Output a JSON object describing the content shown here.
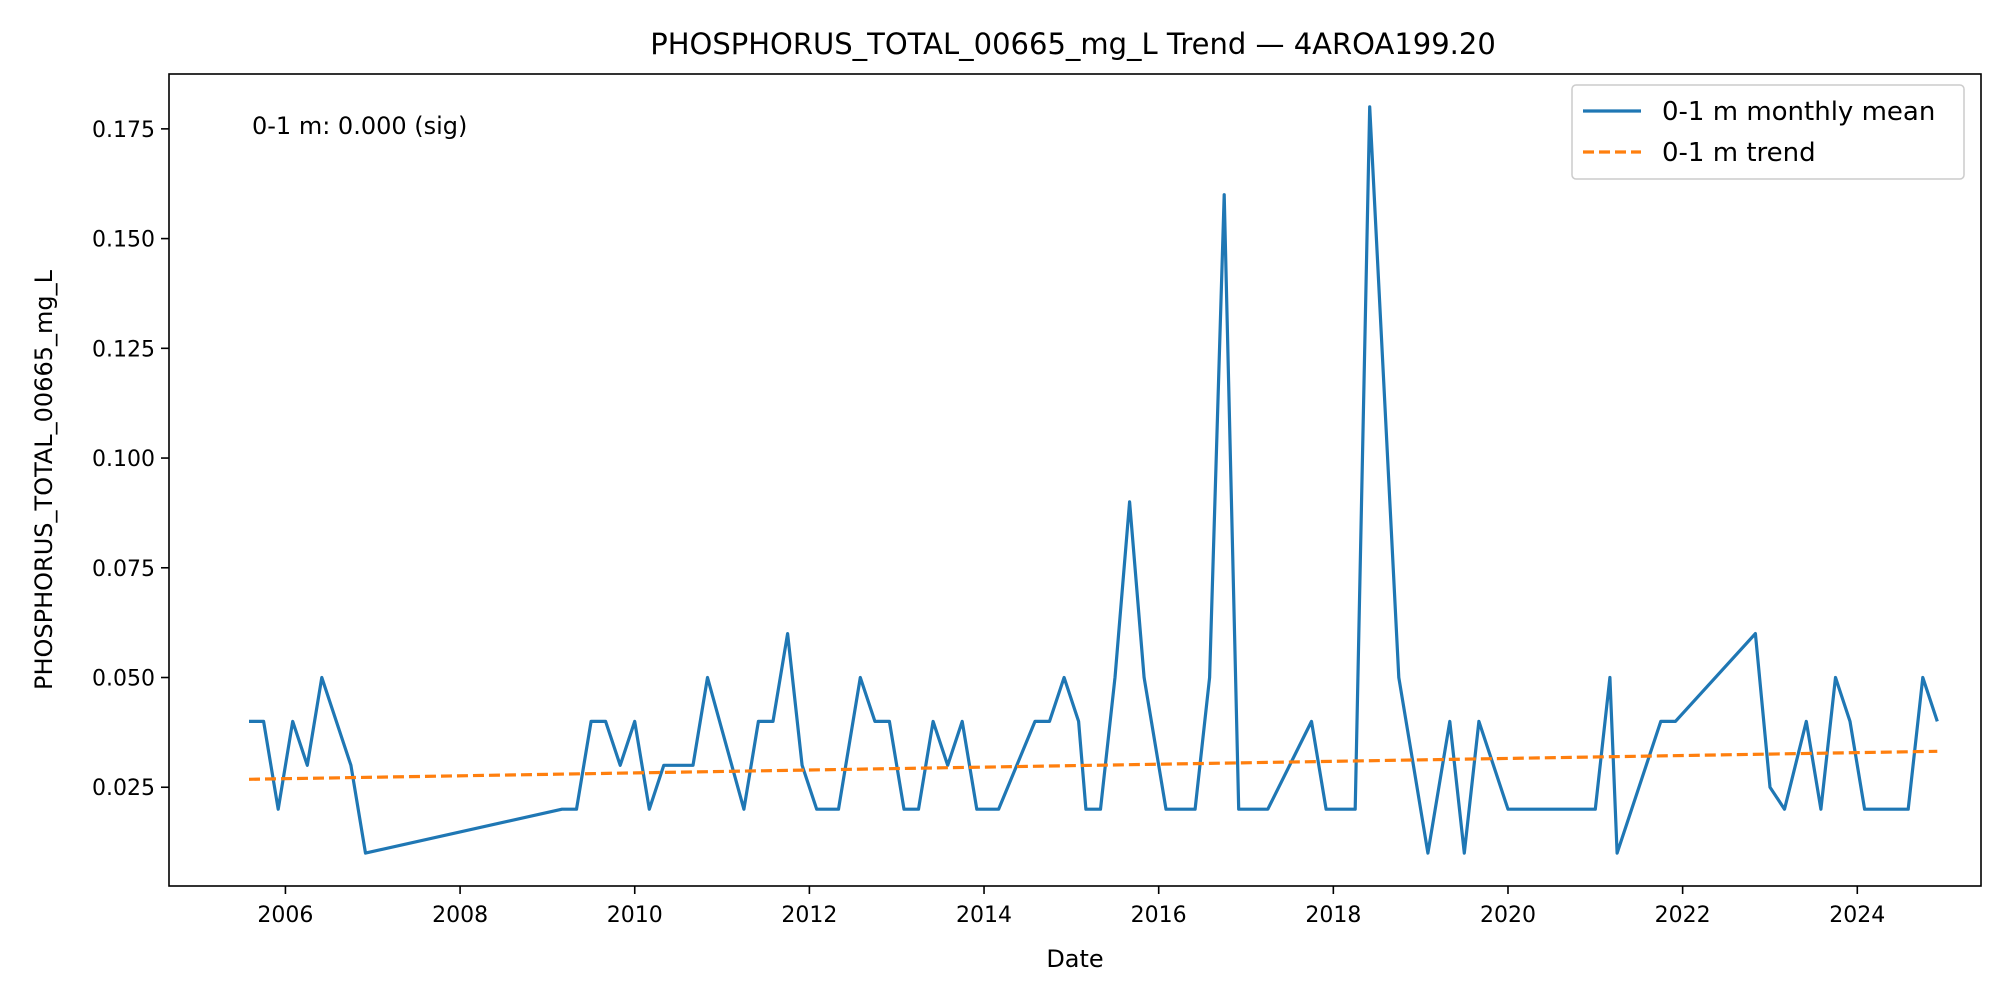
{
  "chart_data": {
    "type": "line",
    "title": "PHOSPHORUS_TOTAL_00665_mg_L Trend — 4AROA199.20",
    "xlabel": "Date",
    "ylabel": "PHOSPHORUS_TOTAL_00665_mg_L",
    "x_axis": "date",
    "xlim": [
      "2004-09-01",
      "2025-06-01"
    ],
    "ylim": [
      0.0025,
      0.1875
    ],
    "xticks": [
      "2006",
      "2008",
      "2010",
      "2012",
      "2014",
      "2016",
      "2018",
      "2020",
      "2022",
      "2024"
    ],
    "yticks": [
      "0.025",
      "0.050",
      "0.075",
      "0.100",
      "0.125",
      "0.150",
      "0.175"
    ],
    "grid": false,
    "legend_position": "top-right",
    "annotation": "0-1 m: 0.000 (sig)",
    "series": [
      {
        "name": "0-1 m monthly mean",
        "color": "#1f77b4",
        "style": "solid",
        "points": [
          [
            "2005-08",
            0.04
          ],
          [
            "2005-10",
            0.04
          ],
          [
            "2005-12",
            0.02
          ],
          [
            "2006-02",
            0.04
          ],
          [
            "2006-04",
            0.03
          ],
          [
            "2006-06",
            0.05
          ],
          [
            "2006-10",
            0.03
          ],
          [
            "2006-12",
            0.01
          ],
          [
            "2009-03",
            0.02
          ],
          [
            "2009-05",
            0.02
          ],
          [
            "2009-07",
            0.04
          ],
          [
            "2009-09",
            0.04
          ],
          [
            "2009-11",
            0.03
          ],
          [
            "2010-01",
            0.04
          ],
          [
            "2010-03",
            0.02
          ],
          [
            "2010-05",
            0.03
          ],
          [
            "2010-09",
            0.03
          ],
          [
            "2010-11",
            0.05
          ],
          [
            "2011-04",
            0.02
          ],
          [
            "2011-06",
            0.04
          ],
          [
            "2011-08",
            0.04
          ],
          [
            "2011-10",
            0.06
          ],
          [
            "2011-12",
            0.03
          ],
          [
            "2012-02",
            0.02
          ],
          [
            "2012-05",
            0.02
          ],
          [
            "2012-08",
            0.05
          ],
          [
            "2012-10",
            0.04
          ],
          [
            "2012-12",
            0.04
          ],
          [
            "2013-02",
            0.02
          ],
          [
            "2013-04",
            0.02
          ],
          [
            "2013-06",
            0.04
          ],
          [
            "2013-08",
            0.03
          ],
          [
            "2013-10",
            0.04
          ],
          [
            "2013-12",
            0.02
          ],
          [
            "2014-03",
            0.02
          ],
          [
            "2014-08",
            0.04
          ],
          [
            "2014-10",
            0.04
          ],
          [
            "2014-12",
            0.05
          ],
          [
            "2015-02",
            0.04
          ],
          [
            "2015-03",
            0.02
          ],
          [
            "2015-05",
            0.02
          ],
          [
            "2015-07",
            0.05
          ],
          [
            "2015-09",
            0.09
          ],
          [
            "2015-11",
            0.05
          ],
          [
            "2016-02",
            0.02
          ],
          [
            "2016-06",
            0.02
          ],
          [
            "2016-08",
            0.05
          ],
          [
            "2016-10",
            0.16
          ],
          [
            "2016-12",
            0.02
          ],
          [
            "2017-04",
            0.02
          ],
          [
            "2017-10",
            0.04
          ],
          [
            "2017-12",
            0.02
          ],
          [
            "2018-04",
            0.02
          ],
          [
            "2018-06",
            0.18
          ],
          [
            "2018-10",
            0.05
          ],
          [
            "2018-12",
            0.03
          ],
          [
            "2019-02",
            0.01
          ],
          [
            "2019-05",
            0.04
          ],
          [
            "2019-07",
            0.01
          ],
          [
            "2019-09",
            0.04
          ],
          [
            "2020-01",
            0.02
          ],
          [
            "2021-01",
            0.02
          ],
          [
            "2021-03",
            0.05
          ],
          [
            "2021-04",
            0.01
          ],
          [
            "2021-10",
            0.04
          ],
          [
            "2021-12",
            0.04
          ],
          [
            "2022-11",
            0.06
          ],
          [
            "2023-01",
            0.025
          ],
          [
            "2023-03",
            0.02
          ],
          [
            "2023-06",
            0.04
          ],
          [
            "2023-08",
            0.02
          ],
          [
            "2023-10",
            0.05
          ],
          [
            "2023-12",
            0.04
          ],
          [
            "2024-02",
            0.02
          ],
          [
            "2024-08",
            0.02
          ],
          [
            "2024-10",
            0.05
          ],
          [
            "2024-12",
            0.04
          ]
        ]
      },
      {
        "name": "0-1 m trend",
        "color": "#ff7f0e",
        "style": "dashed",
        "points": [
          [
            "2005-08",
            0.0268
          ],
          [
            "2024-12",
            0.0332
          ]
        ]
      }
    ]
  }
}
